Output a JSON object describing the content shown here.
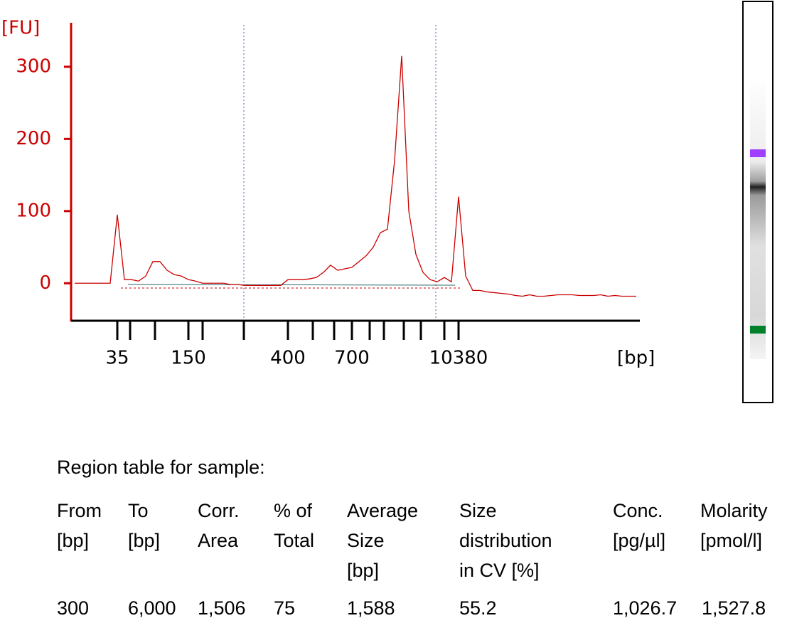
{
  "chart_data": {
    "type": "line",
    "y_label": "[FU]",
    "x_label": "[bp]",
    "color": "#cc0000",
    "categories": [
      null,
      null,
      null,
      null,
      null,
      null,
      "35",
      null,
      null,
      null,
      null,
      null,
      null,
      null,
      null,
      null,
      "150",
      null,
      null,
      null,
      null,
      null,
      null,
      null,
      null,
      null,
      null,
      null,
      null,
      null,
      "400",
      null,
      null,
      null,
      null,
      null,
      null,
      null,
      null,
      "700",
      null,
      null,
      null,
      null,
      null,
      null,
      null,
      null,
      null,
      null,
      null,
      null,
      null,
      null,
      "10380",
      null,
      null,
      null,
      null,
      null,
      null,
      null,
      null,
      null,
      null,
      null,
      null,
      null,
      null,
      null,
      null,
      null,
      null,
      null,
      null,
      null,
      null,
      null,
      null,
      null
    ],
    "values": [
      0,
      0,
      0,
      0,
      0,
      0,
      95,
      5,
      5,
      3,
      10,
      30,
      30,
      18,
      12,
      10,
      5,
      3,
      0,
      0,
      0,
      0,
      -2,
      -2,
      -3,
      -3,
      -3,
      -3,
      -3,
      -3,
      5,
      5,
      5,
      6,
      8,
      15,
      25,
      18,
      20,
      22,
      30,
      38,
      50,
      70,
      75,
      170,
      315,
      100,
      40,
      15,
      5,
      2,
      8,
      2,
      120,
      10,
      -10,
      -10,
      -12,
      -13,
      -14,
      -15,
      -17,
      -18,
      -16,
      -18,
      -18,
      -17,
      -16,
      -16,
      -16,
      -17,
      -17,
      -17,
      -16,
      -18,
      -17,
      -18,
      -18,
      -18
    ],
    "ylim": [
      -51,
      361
    ],
    "yticks": [
      0,
      100,
      200,
      300
    ]
  },
  "table": {
    "title": "Region table for sample:",
    "headers": [
      [
        "From",
        "[bp]"
      ],
      [
        "To",
        "[bp]"
      ],
      [
        "Corr.",
        "Area"
      ],
      [
        "% of",
        "Total"
      ],
      [
        "Average",
        "Size",
        "[bp]"
      ],
      [
        "Size",
        "distribution",
        "in CV [%]"
      ],
      [
        "Conc.",
        "[pg/µl]"
      ],
      [
        "Molarity",
        "[pmol/l]"
      ]
    ],
    "rows": [
      [
        "300",
        "6,000",
        "1,506",
        "75",
        "1,588",
        "55.2",
        "1,026.7",
        "1,527.8"
      ]
    ]
  }
}
